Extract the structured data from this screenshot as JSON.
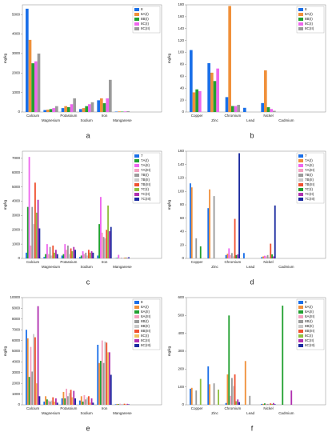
{
  "chart_data": [
    {
      "type": "bar",
      "caption": "a",
      "ylabel": "mg/kg",
      "ylim": [
        0,
        5500
      ],
      "yticks": [
        0,
        1000,
        2000,
        3000,
        4000,
        5000
      ],
      "categories": [
        "Calcium",
        "Magnesium",
        "Potassium",
        "Sodium",
        "Iron",
        "Manganese"
      ],
      "series": [
        {
          "name": "8",
          "color": "#1a6fe8",
          "values": [
            5300,
            100,
            200,
            150,
            600,
            20
          ]
        },
        {
          "name": "8A(I)",
          "color": "#f0903a",
          "values": [
            3700,
            120,
            300,
            200,
            700,
            30
          ]
        },
        {
          "name": "8B(I)",
          "color": "#22a030",
          "values": [
            2500,
            150,
            250,
            300,
            450,
            20
          ]
        },
        {
          "name": "8C(I)",
          "color": "#ee66ee",
          "values": [
            2600,
            200,
            400,
            400,
            700,
            30
          ]
        },
        {
          "name": "8C(II)",
          "color": "#9a9a9a",
          "values": [
            3000,
            300,
            700,
            500,
            1650,
            40
          ]
        }
      ]
    },
    {
      "type": "bar",
      "caption": "b",
      "ylabel": "mg/kg",
      "ylim": [
        0,
        180
      ],
      "yticks": [
        0,
        20,
        40,
        60,
        80,
        100,
        120,
        140,
        160,
        180
      ],
      "categories": [
        "Copper",
        "Zinc",
        "Chromium",
        "Lead",
        "Nickel",
        "Cadmium"
      ],
      "series": [
        {
          "name": "8",
          "color": "#1a6fe8",
          "values": [
            104,
            82,
            25,
            7,
            15,
            0
          ]
        },
        {
          "name": "8A(I)",
          "color": "#f0903a",
          "values": [
            33,
            66,
            178,
            0,
            70,
            0
          ]
        },
        {
          "name": "8B(I)",
          "color": "#22a030",
          "values": [
            38,
            52,
            10,
            0,
            8,
            0
          ]
        },
        {
          "name": "8C(I)",
          "color": "#ee66ee",
          "values": [
            35,
            73,
            10,
            0,
            5,
            0
          ]
        },
        {
          "name": "8C(II)",
          "color": "#9a9a9a",
          "values": [
            0,
            0,
            12,
            0,
            2,
            0
          ]
        }
      ]
    },
    {
      "type": "bar",
      "caption": "c",
      "ylabel": "mg/kg",
      "ylim": [
        0,
        7500
      ],
      "yticks": [
        0,
        1000,
        2000,
        3000,
        4000,
        5000,
        6000,
        7000
      ],
      "categories": [
        "Calcium",
        "Magnesium",
        "Potassium",
        "Sodium",
        "Iron",
        "Manganese"
      ],
      "series": [
        {
          "name": "7",
          "color": "#1a6fe8",
          "values": [
            400,
            100,
            200,
            100,
            200,
            20
          ]
        },
        {
          "name": "7A(I)",
          "color": "#22a030",
          "values": [
            3600,
            300,
            300,
            200,
            2400,
            40
          ]
        },
        {
          "name": "7A(II)",
          "color": "#ee66ee",
          "values": [
            7100,
            1000,
            1000,
            500,
            4300,
            250
          ]
        },
        {
          "name": "7A(III)",
          "color": "#f4a0c0",
          "values": [
            900,
            300,
            600,
            300,
            1800,
            30
          ]
        },
        {
          "name": "7B(I)",
          "color": "#9a9a9a",
          "values": [
            3600,
            800,
            900,
            400,
            1500,
            40
          ]
        },
        {
          "name": "7B(II)",
          "color": "#c8c8c8",
          "values": [
            2400,
            200,
            300,
            200,
            1400,
            20
          ]
        },
        {
          "name": "7B(III)",
          "color": "#f05030",
          "values": [
            5300,
            900,
            700,
            600,
            2000,
            40
          ]
        },
        {
          "name": "7C(I)",
          "color": "#8fc040",
          "values": [
            3200,
            400,
            500,
            400,
            3700,
            60
          ]
        },
        {
          "name": "7C(II)",
          "color": "#b030b0",
          "values": [
            4100,
            600,
            800,
            500,
            1900,
            40
          ]
        },
        {
          "name": "7C(III)",
          "color": "#1a2aa0",
          "values": [
            2100,
            300,
            600,
            400,
            2200,
            80
          ]
        }
      ]
    },
    {
      "type": "bar",
      "caption": "d",
      "ylabel": "mg/kg",
      "ylim": [
        0,
        160
      ],
      "yticks": [
        0,
        20,
        40,
        60,
        80,
        100,
        120,
        140,
        160
      ],
      "categories": [
        "Copper",
        "Zinc",
        "Chromium",
        "Lead",
        "Nickel",
        "Cadmium"
      ],
      "series": [
        {
          "name": "7",
          "color": "#1a6fe8",
          "values": [
            112,
            75,
            5,
            8,
            2,
            0
          ]
        },
        {
          "name": "7A(I)",
          "color": "#f0903a",
          "values": [
            106,
            103,
            7,
            0,
            3,
            0
          ]
        },
        {
          "name": "7A(II)",
          "color": "#ee66ee",
          "values": [
            0,
            0,
            15,
            0,
            4,
            0
          ]
        },
        {
          "name": "7A(III)",
          "color": "#f4a0c0",
          "values": [
            0,
            0,
            5,
            0,
            3,
            0
          ]
        },
        {
          "name": "7B(I)",
          "color": "#9a9a9a",
          "values": [
            30,
            93,
            8,
            0,
            5,
            0
          ]
        },
        {
          "name": "7B(II)",
          "color": "#c8c8c8",
          "values": [
            0,
            0,
            3,
            0,
            2,
            0
          ]
        },
        {
          "name": "7B(III)",
          "color": "#f05030",
          "values": [
            0,
            0,
            59,
            0,
            22,
            0
          ]
        },
        {
          "name": "7C(I)",
          "color": "#22a030",
          "values": [
            18,
            0,
            5,
            0,
            6,
            0
          ]
        },
        {
          "name": "7C(II)",
          "color": "#b030b0",
          "values": [
            0,
            0,
            6,
            0,
            3,
            0
          ]
        },
        {
          "name": "7C(III)",
          "color": "#1a2aa0",
          "values": [
            0,
            0,
            157,
            0,
            79,
            0
          ]
        }
      ]
    },
    {
      "type": "bar",
      "caption": "e",
      "ylabel": "mg/kg",
      "ylim": [
        0,
        10000
      ],
      "yticks": [
        0,
        1000,
        2000,
        3000,
        4000,
        5000,
        6000,
        7000,
        8000,
        9000,
        10000
      ],
      "categories": [
        "Calcium",
        "Magnesium",
        "Potassium",
        "Sodium",
        "Iron",
        "Manganese"
      ],
      "series": [
        {
          "name": "8",
          "color": "#1a6fe8",
          "values": [
            7000,
            300,
            600,
            400,
            5600,
            50
          ]
        },
        {
          "name": "8A(I)",
          "color": "#f0903a",
          "values": [
            6200,
            800,
            1200,
            800,
            3900,
            80
          ]
        },
        {
          "name": "8A(II)",
          "color": "#22a030",
          "values": [
            2600,
            500,
            600,
            300,
            4100,
            60
          ]
        },
        {
          "name": "8A(III)",
          "color": "#f4a0c0",
          "values": [
            5400,
            400,
            1500,
            900,
            6000,
            100
          ]
        },
        {
          "name": "8B(I)",
          "color": "#9a9a9a",
          "values": [
            3100,
            300,
            800,
            500,
            3900,
            40
          ]
        },
        {
          "name": "8B(II)",
          "color": "#c8c8c8",
          "values": [
            6600,
            400,
            1100,
            700,
            5900,
            80
          ]
        },
        {
          "name": "8B(III)",
          "color": "#f05030",
          "values": [
            6300,
            700,
            1400,
            800,
            5800,
            100
          ]
        },
        {
          "name": "8C(I)",
          "color": "#f0c060",
          "values": [
            2000,
            300,
            700,
            200,
            4900,
            50
          ]
        },
        {
          "name": "8C(II)",
          "color": "#b030b0",
          "values": [
            9200,
            600,
            1300,
            600,
            4900,
            90
          ]
        },
        {
          "name": "8C(III)",
          "color": "#1a2aa0",
          "values": [
            800,
            200,
            600,
            200,
            2800,
            40
          ]
        }
      ]
    },
    {
      "type": "bar",
      "caption": "f",
      "ylabel": "mg/kg",
      "ylim": [
        0,
        600
      ],
      "yticks": [
        0,
        100,
        200,
        300,
        400,
        500,
        600
      ],
      "categories": [
        "Copper",
        "Zinc",
        "Chromium",
        "Lead",
        "Nickel",
        "Cadmium"
      ],
      "series": [
        {
          "name": "8",
          "color": "#1a6fe8",
          "values": [
            90,
            215,
            10,
            0,
            5,
            0
          ]
        },
        {
          "name": "8A(I)",
          "color": "#f0903a",
          "values": [
            95,
            115,
            170,
            245,
            5,
            0
          ]
        },
        {
          "name": "8A(II)",
          "color": "#22a030",
          "values": [
            0,
            0,
            500,
            0,
            8,
            555
          ]
        },
        {
          "name": "8A(III)",
          "color": "#f4a0c0",
          "values": [
            0,
            0,
            50,
            0,
            5,
            0
          ]
        },
        {
          "name": "8B(I)",
          "color": "#9a9a9a",
          "values": [
            80,
            120,
            150,
            50,
            5,
            0
          ]
        },
        {
          "name": "8B(II)",
          "color": "#c8c8c8",
          "values": [
            0,
            0,
            105,
            0,
            5,
            0
          ]
        },
        {
          "name": "8B(III)",
          "color": "#f05030",
          "values": [
            0,
            0,
            170,
            0,
            8,
            0
          ]
        },
        {
          "name": "8C(I)",
          "color": "#8fc040",
          "values": [
            145,
            85,
            20,
            0,
            5,
            0
          ]
        },
        {
          "name": "8C(II)",
          "color": "#b030b0",
          "values": [
            0,
            0,
            30,
            0,
            10,
            80
          ]
        },
        {
          "name": "8C(III)",
          "color": "#1a2aa0",
          "values": [
            0,
            0,
            15,
            0,
            3,
            0
          ]
        }
      ]
    }
  ]
}
